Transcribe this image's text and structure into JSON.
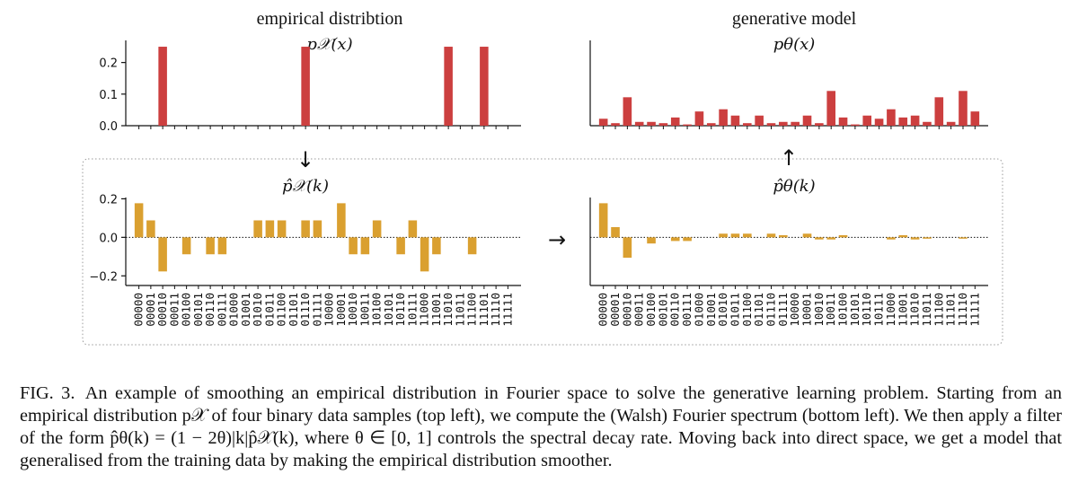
{
  "colors": {
    "empirical": "#cc3f3f",
    "fourier": "#daa030",
    "axis": "#111111",
    "box": "#9a9a9a"
  },
  "titles": {
    "top_left_title": "empirical distribtion",
    "top_right_title": "generative model",
    "top_left_label": "p𝒳(x)",
    "top_right_label": "pθ(x)",
    "bottom_left_label": "p̂𝒳(k)",
    "bottom_right_label": "p̂θ(k)"
  },
  "arrows": {
    "down": "↓",
    "up": "↑",
    "right": "→"
  },
  "caption": {
    "label": "FIG. 3.",
    "text": "An example of smoothing an empirical distribution in Fourier space to solve the generative learning problem. Starting from an empirical distribution p𝒳 of four binary data samples (top left), we compute the (Walsh) Fourier spectrum (bottom left). We then apply a filter of the form p̂θ(k) = (1 − 2θ)|k|p̂𝒳(k), where θ ∈ [0, 1] controls the spectral decay rate. Moving back into direct space, we get a model that generalised from the training data by making the empirical distribution smoother."
  },
  "chart_data": [
    {
      "type": "bar",
      "title": "empirical distribtion",
      "ylabel": "p𝒳(x)",
      "yticks": [
        "0.0",
        "0.1",
        "0.2"
      ],
      "ylim": [
        0,
        0.27
      ],
      "show_yaxis": true,
      "values": [
        0,
        0,
        0.25,
        0,
        0,
        0,
        0,
        0,
        0,
        0,
        0,
        0,
        0,
        0,
        0.25,
        0,
        0,
        0,
        0,
        0,
        0,
        0,
        0,
        0,
        0,
        0,
        0.25,
        0,
        0,
        0.25,
        0,
        0
      ]
    },
    {
      "type": "bar",
      "title": "generative model",
      "ylabel": "pθ(x)",
      "yticks": [],
      "ylim": [
        0,
        0.27
      ],
      "show_yaxis": false,
      "values": [
        0.022,
        0.008,
        0.09,
        0.012,
        0.012,
        0.008,
        0.026,
        0.004,
        0.045,
        0.008,
        0.052,
        0.032,
        0.008,
        0.032,
        0.008,
        0.012,
        0.012,
        0.032,
        0.008,
        0.11,
        0.026,
        0.004,
        0.032,
        0.022,
        0.052,
        0.026,
        0.032,
        0.012,
        0.09,
        0.012,
        0.11,
        0.045
      ]
    },
    {
      "type": "bar",
      "ylabel": "p̂𝒳(k)",
      "yticks": [
        "−0.2",
        "0.0",
        "0.2"
      ],
      "ylim": [
        -0.25,
        0.23
      ],
      "show_yaxis": true,
      "categories": [
        "00000",
        "00001",
        "00010",
        "00011",
        "00100",
        "00101",
        "00110",
        "00111",
        "01000",
        "01001",
        "01010",
        "01011",
        "01100",
        "01101",
        "01110",
        "01111",
        "10000",
        "10001",
        "10010",
        "10011",
        "10100",
        "10101",
        "10110",
        "10111",
        "11000",
        "11001",
        "11010",
        "11011",
        "11100",
        "11101",
        "11110",
        "11111"
      ],
      "values": [
        0.177,
        0.088,
        -0.177,
        0,
        -0.088,
        0,
        -0.088,
        -0.088,
        0,
        0,
        0.088,
        0.088,
        0.088,
        0,
        0.088,
        0.088,
        0,
        0.177,
        -0.088,
        -0.088,
        0.088,
        0,
        -0.088,
        0.088,
        -0.177,
        -0.088,
        0,
        0,
        -0.088,
        0,
        0,
        0
      ]
    },
    {
      "type": "bar",
      "ylabel": "p̂θ(k)",
      "yticks": [],
      "ylim": [
        -0.25,
        0.23
      ],
      "show_yaxis": false,
      "categories": [
        "00000",
        "00001",
        "00010",
        "00011",
        "00100",
        "00101",
        "00110",
        "00111",
        "01000",
        "01001",
        "01010",
        "01011",
        "01100",
        "01101",
        "01110",
        "01111",
        "10000",
        "10001",
        "10010",
        "10011",
        "10100",
        "10101",
        "10110",
        "10111",
        "11000",
        "11001",
        "11010",
        "11011",
        "11100",
        "11101",
        "11110",
        "11111"
      ],
      "values": [
        0.177,
        0.053,
        -0.106,
        0,
        -0.032,
        0,
        -0.019,
        -0.019,
        0,
        0,
        0.019,
        0.019,
        0.019,
        0,
        0.019,
        0.011,
        0,
        0.019,
        -0.011,
        -0.011,
        0.011,
        0,
        0,
        0,
        -0.011,
        0.011,
        -0.011,
        -0.007,
        0,
        0,
        -0.007,
        0
      ]
    }
  ]
}
